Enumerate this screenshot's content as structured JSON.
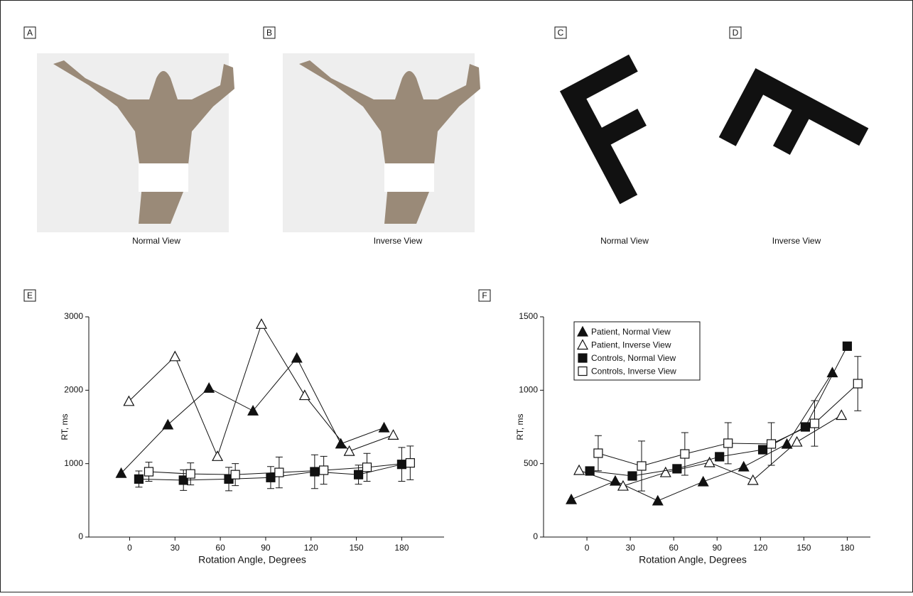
{
  "panels": [
    {
      "label": "A",
      "caption": "Normal View"
    },
    {
      "label": "B",
      "caption": "Inverse View"
    },
    {
      "label": "C",
      "caption": "Normal View"
    },
    {
      "label": "D",
      "caption": "Inverse View"
    }
  ],
  "chart_data": [
    {
      "type": "line",
      "panel_label": "E",
      "xlabel": "Rotation Angle, Degrees",
      "ylabel": "RT, ms",
      "xlim": [
        -27,
        208
      ],
      "xticks": [
        0,
        30,
        60,
        90,
        120,
        150,
        180
      ],
      "ylim": [
        0,
        3000
      ],
      "yticks": [
        0,
        1000,
        2000,
        3000
      ],
      "legend": false,
      "series": [
        {
          "name": "Patient, Normal View",
          "marker": "triangle",
          "filled": true,
          "color": "#111111",
          "x": [
            -5.6,
            25.3,
            52.5,
            81.6,
            110.6,
            139.7,
            168.3
          ],
          "values": [
            870,
            1530,
            2030,
            1720,
            2440,
            1270,
            1490
          ]
        },
        {
          "name": "Patient, Inverse View",
          "marker": "triangle",
          "filled": false,
          "color": "#111111",
          "x": [
            -0.5,
            30,
            58.1,
            87.2,
            115.8,
            145.3,
            174.4
          ],
          "values": [
            1850,
            2460,
            1100,
            2900,
            1930,
            1170,
            1390
          ]
        },
        {
          "name": "Controls, Normal View",
          "marker": "square",
          "filled": true,
          "color": "#111111",
          "x": [
            6.1,
            35.6,
            65.6,
            93.3,
            122.4,
            151.4,
            180
          ],
          "values": [
            790,
            775,
            790,
            810,
            890,
            850,
            990
          ],
          "errors": [
            110,
            140,
            160,
            150,
            230,
            130,
            230
          ]
        },
        {
          "name": "Controls, Inverse View",
          "marker": "square",
          "filled": false,
          "color": "#111111",
          "x": [
            12.7,
            40.3,
            69.9,
            98.9,
            128.4,
            157,
            185.6
          ],
          "values": [
            890,
            860,
            850,
            880,
            910,
            950,
            1010
          ],
          "errors": [
            130,
            150,
            150,
            210,
            190,
            190,
            230
          ]
        }
      ]
    },
    {
      "type": "line",
      "panel_label": "F",
      "xlabel": "Rotation Angle, Degrees",
      "ylabel": "RT, ms",
      "xlim": [
        -30,
        196
      ],
      "xticks": [
        0,
        30,
        60,
        90,
        120,
        150,
        180
      ],
      "ylim": [
        0,
        1500
      ],
      "yticks": [
        0,
        500,
        1000,
        1500
      ],
      "legend": true,
      "legend_position": "upper-left",
      "series": [
        {
          "name": "Patient, Normal View",
          "marker": "triangle",
          "filled": true,
          "color": "#111111",
          "x": [
            -10.8,
            19.6,
            49,
            80.4,
            108.4,
            138.3,
            169.7
          ],
          "values": [
            256,
            382,
            247,
            377,
            479,
            634,
            1120
          ]
        },
        {
          "name": "Patient, Inverse View",
          "marker": "triangle",
          "filled": false,
          "color": "#111111",
          "x": [
            -5.4,
            25,
            54.4,
            84.8,
            114.8,
            145.2,
            176
          ],
          "values": [
            455,
            348,
            440,
            508,
            387,
            648,
            830
          ]
        },
        {
          "name": "Controls, Normal View",
          "marker": "square",
          "filled": true,
          "color": "#111111",
          "x": [
            2,
            31.4,
            62.3,
            91.7,
            121.6,
            151,
            180
          ],
          "values": [
            450,
            416,
            465,
            547,
            595,
            750,
            1300
          ]
        },
        {
          "name": "Controls, Inverse View",
          "marker": "square",
          "filled": false,
          "color": "#111111",
          "x": [
            7.8,
            37.8,
            67.7,
            97.6,
            127.5,
            157.4,
            187.3
          ],
          "values": [
            571,
            484,
            566,
            639,
            634,
            774,
            1045
          ],
          "errors": [
            120,
            170,
            145,
            140,
            145,
            155,
            185
          ]
        }
      ]
    }
  ]
}
